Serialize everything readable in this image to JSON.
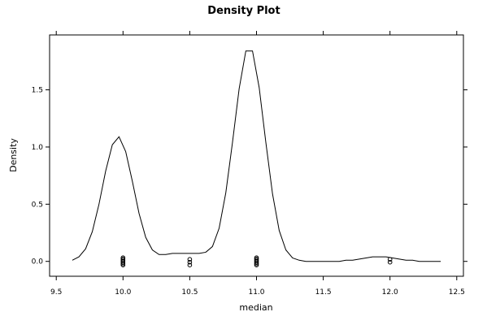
{
  "chart_data": {
    "type": "line",
    "title": "Density Plot",
    "xlabel": "median",
    "ylabel": "Density",
    "xlim": [
      9.45,
      12.55
    ],
    "ylim": [
      -0.13,
      1.98
    ],
    "grid": false,
    "legend": "none",
    "x_ticks": [
      9.5,
      10.0,
      10.5,
      11.0,
      11.5,
      12.0,
      12.5
    ],
    "x_tick_labels": [
      "9.5",
      "10.0",
      "10.5",
      "11.0",
      "11.5",
      "12.0",
      "12.5"
    ],
    "y_ticks": [
      0.0,
      0.5,
      1.0,
      1.5
    ],
    "y_tick_labels": [
      "0.0",
      "0.5",
      "1.0",
      "1.5"
    ],
    "line_color": "#000000",
    "series": [
      {
        "x": [
          9.62,
          9.67,
          9.72,
          9.77,
          9.82,
          9.87,
          9.92,
          9.97,
          10.02,
          10.07,
          10.12,
          10.17,
          10.22,
          10.27,
          10.32,
          10.37,
          10.42,
          10.47,
          10.52,
          10.57,
          10.62,
          10.67,
          10.72,
          10.77,
          10.82,
          10.87,
          10.92,
          10.97,
          11.02,
          11.07,
          11.12,
          11.17,
          11.22,
          11.27,
          11.32,
          11.37,
          11.42,
          11.47,
          11.52,
          11.57,
          11.62,
          11.67,
          11.72,
          11.77,
          11.82,
          11.87,
          11.92,
          11.97,
          12.02,
          12.07,
          12.12,
          12.17,
          12.22,
          12.27,
          12.32,
          12.38
        ],
        "y": [
          0.01,
          0.04,
          0.11,
          0.26,
          0.5,
          0.79,
          1.02,
          1.09,
          0.96,
          0.7,
          0.42,
          0.21,
          0.1,
          0.06,
          0.06,
          0.07,
          0.07,
          0.07,
          0.07,
          0.07,
          0.08,
          0.13,
          0.29,
          0.6,
          1.04,
          1.51,
          1.84,
          1.84,
          1.52,
          1.04,
          0.59,
          0.27,
          0.1,
          0.03,
          0.01,
          0.0,
          0.0,
          0.0,
          0.0,
          0.0,
          0.0,
          0.01,
          0.01,
          0.02,
          0.03,
          0.04,
          0.04,
          0.04,
          0.03,
          0.02,
          0.01,
          0.01,
          0.0,
          0.0,
          0.0,
          0.0
        ]
      }
    ],
    "rug_points": [
      {
        "x": 10.0,
        "count": 7
      },
      {
        "x": 10.5,
        "count": 3
      },
      {
        "x": 11.0,
        "count": 7
      },
      {
        "x": 12.0,
        "count": 2
      }
    ]
  }
}
